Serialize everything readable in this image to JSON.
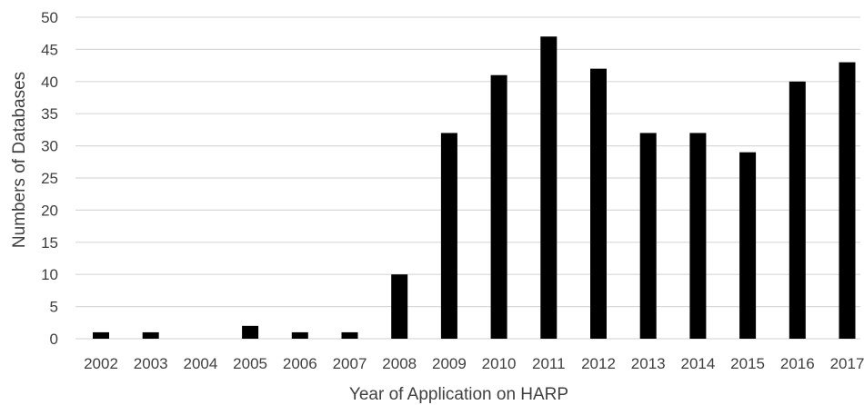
{
  "chart_data": {
    "type": "bar",
    "title": "",
    "xlabel": "Year of Application on HARP",
    "ylabel": "Numbers of Databases",
    "categories": [
      "2002",
      "2003",
      "2004",
      "2005",
      "2006",
      "2007",
      "2008",
      "2009",
      "2010",
      "2011",
      "2012",
      "2013",
      "2014",
      "2015",
      "2016",
      "2017"
    ],
    "values": [
      1,
      1,
      0,
      2,
      1,
      1,
      10,
      32,
      41,
      47,
      42,
      32,
      32,
      29,
      40,
      43
    ],
    "ylim": [
      0,
      50
    ],
    "yticks": [
      0,
      5,
      10,
      15,
      20,
      25,
      30,
      35,
      40,
      45,
      50
    ],
    "grid": true,
    "legend": "none",
    "bar_color": "#000000",
    "grid_color": "#d9d9d9"
  }
}
